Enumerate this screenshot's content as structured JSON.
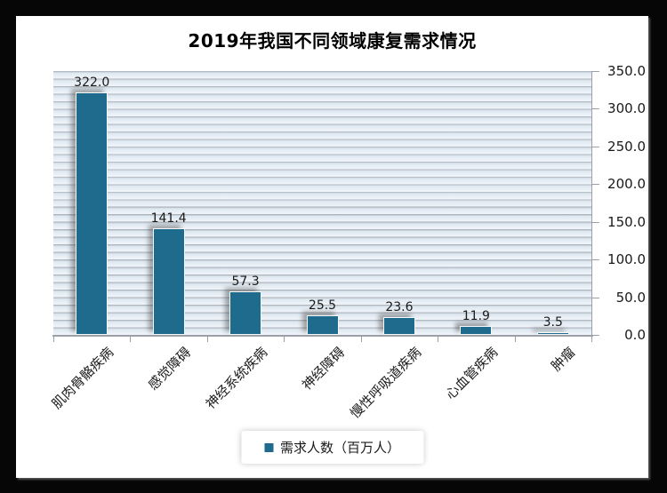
{
  "window": {
    "frame_color": "#060606",
    "card_color": "#ffffff"
  },
  "chart_data": {
    "type": "bar",
    "title": "2019年我国不同领域康复需求情况",
    "categories": [
      "肌肉骨骼疾病",
      "感觉障碍",
      "神经系统疾病",
      "神经障碍",
      "慢性呼吸道疾病",
      "心血管疾病",
      "肿瘤"
    ],
    "series": [
      {
        "name": "需求人数（百万人）",
        "values": [
          322.0,
          141.4,
          57.3,
          25.5,
          23.6,
          11.9,
          3.5
        ],
        "color": "#1f6b8e"
      }
    ],
    "data_labels": [
      "322.0",
      "141.4",
      "57.3",
      "25.5",
      "23.6",
      "11.9",
      "3.5"
    ],
    "xlabel": "",
    "ylabel": "",
    "ylim": [
      0,
      350
    ],
    "y_tick_step": 50,
    "y_ticks": [
      "350.0",
      "300.0",
      "250.0",
      "200.0",
      "150.0",
      "100.0",
      "50.0",
      "0.0"
    ],
    "y_axis_side": "right",
    "grid": "horizontal-pinstripe",
    "legend_position": "bottom-center",
    "axis_color": "#9aa0a6",
    "text_color": "#1a1a1a"
  }
}
